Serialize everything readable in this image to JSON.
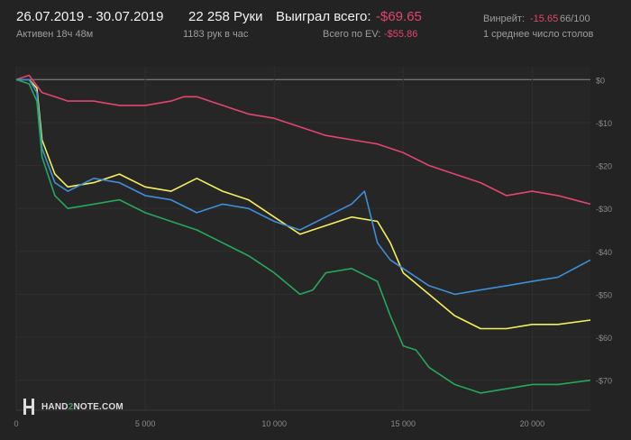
{
  "header": {
    "date_range": "26.07.2019 - 30.07.2019",
    "active": "Активен 18ч 48м",
    "hands": "22 258 Руки",
    "hands_per_hour": "1183 рук в час",
    "won_label": "Выиграл всего:",
    "won_value": "-$69.65",
    "ev_label": "Всего по EV:",
    "ev_value": "-$55.86",
    "rake_label": "Винрейт:",
    "rake_value": "-15.65",
    "rake_extra": "66/100",
    "tables": "1 среднее число столов"
  },
  "logo": {
    "part1": "HAND",
    "part2": "2",
    "part3": "NOTE.COM"
  },
  "colors": {
    "background": "#232323",
    "grid": "#2f2f2f",
    "zero_line": "#8c8c8c",
    "accent_red": "#e2456f"
  },
  "chart_data": {
    "type": "line",
    "x_ticks": [
      0,
      5000,
      10000,
      15000,
      20000
    ],
    "x_tick_labels": [
      "0",
      "5 000",
      "10 000",
      "15 000",
      "20 000"
    ],
    "y_ticks": [
      0,
      -10,
      -20,
      -30,
      -40,
      -50,
      -60,
      -70
    ],
    "y_tick_labels": [
      "$0",
      "-$10",
      "-$20",
      "-$30",
      "-$40",
      "-$50",
      "-$60",
      "-$70"
    ],
    "xlim": [
      0,
      22258
    ],
    "ylim": [
      -77,
      3
    ],
    "grid": true,
    "series": [
      {
        "color": "#e2456f",
        "x": [
          0,
          500,
          1000,
          1500,
          2000,
          3000,
          4000,
          5000,
          6000,
          6500,
          7000,
          8000,
          9000,
          10000,
          11000,
          12000,
          13000,
          14000,
          15000,
          16000,
          17000,
          18000,
          19000,
          20000,
          21000,
          22258
        ],
        "y": [
          0,
          1,
          -3,
          -4,
          -5,
          -5,
          -6,
          -6,
          -5,
          -4,
          -4,
          -6,
          -8,
          -9,
          -11,
          -13,
          -14,
          -15,
          -17,
          -20,
          -22,
          -24,
          -27,
          -26,
          -27,
          -29
        ]
      },
      {
        "color": "#f4ef5d",
        "x": [
          0,
          500,
          800,
          1000,
          1500,
          2000,
          3000,
          4000,
          5000,
          6000,
          7000,
          8000,
          9000,
          10000,
          11000,
          12000,
          13000,
          14000,
          14500,
          15000,
          16000,
          17000,
          18000,
          19000,
          20000,
          21000,
          22258
        ],
        "y": [
          0,
          0,
          -2,
          -14,
          -22,
          -25,
          -24,
          -22,
          -25,
          -26,
          -23,
          -26,
          -28,
          -32,
          -36,
          -34,
          -32,
          -33,
          -38,
          -45,
          -50,
          -55,
          -58,
          -58,
          -57,
          -57,
          -56
        ]
      },
      {
        "color": "#3f8ed9",
        "x": [
          0,
          500,
          800,
          1000,
          1500,
          2000,
          3000,
          4000,
          5000,
          6000,
          7000,
          8000,
          9000,
          10000,
          11000,
          12000,
          13000,
          13500,
          14000,
          14500,
          15000,
          16000,
          17000,
          18000,
          19000,
          20000,
          21000,
          22258
        ],
        "y": [
          0,
          0,
          -3,
          -16,
          -24,
          -26,
          -23,
          -24,
          -27,
          -28,
          -31,
          -29,
          -30,
          -33,
          -35,
          -32,
          -29,
          -26,
          -38,
          -42,
          -44,
          -48,
          -50,
          -49,
          -48,
          -47,
          -46,
          -42
        ]
      },
      {
        "color": "#25a85c",
        "x": [
          0,
          500,
          800,
          1000,
          1500,
          2000,
          3000,
          4000,
          5000,
          6000,
          7000,
          8000,
          9000,
          10000,
          11000,
          11500,
          12000,
          13000,
          14000,
          14500,
          15000,
          15500,
          16000,
          17000,
          18000,
          19000,
          20000,
          21000,
          22258
        ],
        "y": [
          0,
          -1,
          -5,
          -18,
          -27,
          -30,
          -29,
          -28,
          -31,
          -33,
          -35,
          -38,
          -41,
          -45,
          -50,
          -49,
          -45,
          -44,
          -47,
          -55,
          -62,
          -63,
          -67,
          -71,
          -73,
          -72,
          -71,
          -71,
          -70
        ]
      }
    ]
  }
}
